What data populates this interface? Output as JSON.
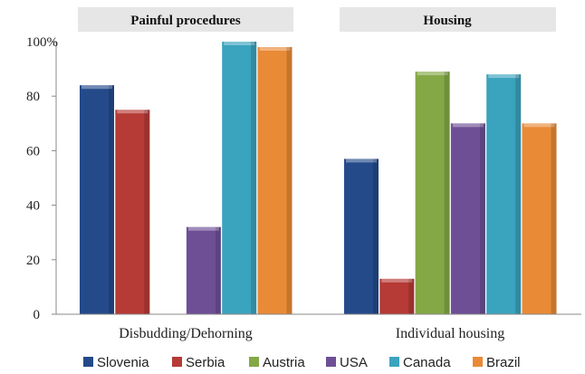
{
  "chart_data": {
    "type": "bar",
    "panels": [
      "Painful procedures",
      "Housing"
    ],
    "categories": [
      "Disbudding/Dehorning",
      "Individual housing"
    ],
    "series": [
      {
        "name": "Slovenia",
        "color": "#244a8a",
        "values": [
          84,
          57
        ]
      },
      {
        "name": "Serbia",
        "color": "#b63a36",
        "values": [
          75,
          13
        ]
      },
      {
        "name": "Austria",
        "color": "#83a845",
        "values": [
          null,
          89
        ]
      },
      {
        "name": "USA",
        "color": "#6e4f96",
        "values": [
          32,
          70
        ]
      },
      {
        "name": "Canada",
        "color": "#3aa3be",
        "values": [
          100,
          88
        ]
      },
      {
        "name": "Brazil",
        "color": "#e98a36",
        "values": [
          98,
          70
        ]
      }
    ],
    "ylim": [
      0,
      100
    ],
    "yticks": [
      "0",
      "20",
      "40",
      "60",
      "80",
      "100%"
    ],
    "ytick_values": [
      0,
      20,
      40,
      60,
      80,
      100
    ],
    "grid": false,
    "legend_position": "bottom"
  }
}
